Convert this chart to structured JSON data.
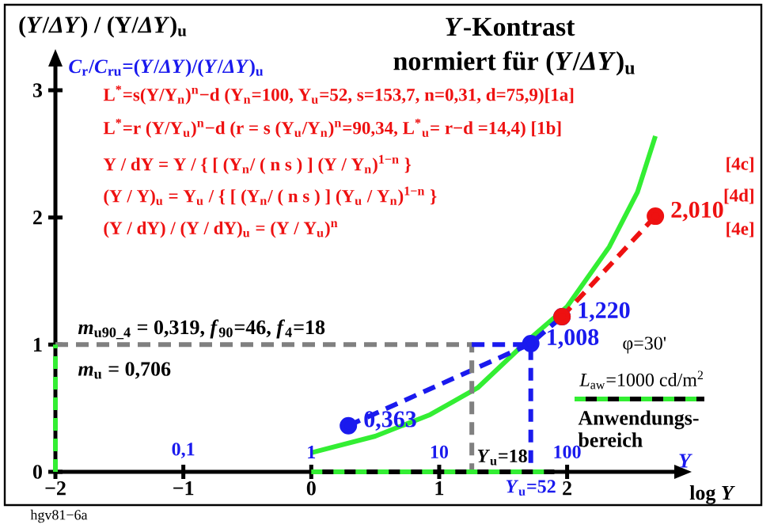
{
  "chart_data": {
    "type": "line",
    "title": "*Y*-Kontrast",
    "subtitle": "normiert für (*Y*/*ΔY*)$_{u}$",
    "ylabel": "(*Y*/*ΔY*) / (Y/*ΔY*)$_{u}$",
    "log": "x2",
    "xlabel": "log *Y*",
    "x2label": "*Y*",
    "xlim": [
      -2,
      2.85
    ],
    "ylim": [
      0,
      3.2
    ],
    "xticks": [
      {
        "value": -2,
        "label": "−2"
      },
      {
        "value": -1,
        "label": "−1"
      },
      0,
      1,
      2
    ],
    "yticks": [
      0,
      1,
      2,
      3
    ],
    "x2lim": [
      0.01,
      708
    ],
    "x2ticks": [
      {
        "value": 0.1,
        "label": "0,1"
      },
      1,
      10,
      100
    ],
    "grid": false,
    "legend": "right",
    "series": [
      {
        "color": "#33ee33",
        "marker": "none",
        "line_style": "solid",
        "x": [
          0,
          0.5,
          0.93,
          1.3,
          1.69,
          2.0,
          2.33,
          2.55,
          2.69
        ],
        "values": [
          0.15,
          0.28,
          0.45,
          0.66,
          1.03,
          1.3,
          1.77,
          2.2,
          2.64
        ]
      },
      {
        "color": "#1a1aee",
        "marker": "circle",
        "line_style": "dashed",
        "x": [
          0.29,
          1.716,
          1.96
        ],
        "values": [
          0.363,
          1.008,
          1.22
        ],
        "value_labels": [
          "0,363",
          "1,008",
          "1,220"
        ]
      },
      {
        "color": "#ee1111",
        "marker": "circle",
        "line_style": "dashed",
        "x": [
          1.96,
          2.69
        ],
        "values": [
          1.22,
          2.01
        ],
        "value_labels": [
          null,
          "2,010"
        ]
      },
      {
        "color": "#808080",
        "marker": "none",
        "line_style": "dashed",
        "x": [
          -2,
          1.255,
          1.255
        ],
        "values": [
          1,
          1,
          0
        ]
      },
      {
        "color": "#1a1aee",
        "marker": "none",
        "line_style": "dashed",
        "x": [
          1.255,
          1.716,
          1.716
        ],
        "values": [
          1,
          1,
          0
        ]
      },
      {
        "color": "#33ee33",
        "marker": "none",
        "line_style": "dashed",
        "name": "Anwendungs- bereich",
        "x": [
          0,
          1.9
        ],
        "values": [
          0,
          0
        ]
      },
      {
        "color": "#33ee33",
        "marker": "none",
        "line_style": "dashed",
        "x": [
          -2,
          -2
        ],
        "values": [
          0,
          1
        ]
      }
    ],
    "annotations": [
      "*C*$_{r}$/*C*$_{ru}$=(*Y*/*ΔY*)/(*Y*/*ΔY*)$_{u}$",
      "L$^{*}$=s(Y/Y$_{n}$)$^{n}$−d  (Y$_{n}$=100, Y$_{u}$=52, s=153,7, n=0,31, d=75,9)[1a]",
      "L$^{*}$=r (Y/Y$_{u}$)$^{n}$−d  (r = s (Y$_{u}$/Y$_{n}$)$^{n}$=90,34, L$^{*}$$_{u}$= r−d =14,4)      [1b]",
      "Y / dY = Y / { [ (Y$_{n}$/ ( n s ) ] (Y / Y$_{n}$)$^{1−n}$ }",
      "(Y / Y)$_{u}$ = Y$_{u}$ / { [ (Y$_{n}$/ ( n s ) ] (Y$_{u}$ / Y$_{n}$)$^{1−n}$ }",
      "(Y / dY) / (Y / dY)$_{u}$ = (Y / Y$_{u}$)$^{n}$",
      "[4c]",
      "[4d]",
      "[4e]",
      "*m*$_{u90_4}$ = 0,319, *f*$_{90}$=46, *f*$_{4}$=18",
      "*m*$_{u}$ = 0,706",
      "φ=30'",
      "*L*$_{aw}$=1000 cd/m$^{2}$",
      {
        "text": "*Y*$_{u}$=18",
        "x": 1.255,
        "y": 0
      },
      {
        "text": "*Y*$_{u}$=52",
        "x": 1.716,
        "y": 0
      },
      "hgv81−6a"
    ]
  }
}
